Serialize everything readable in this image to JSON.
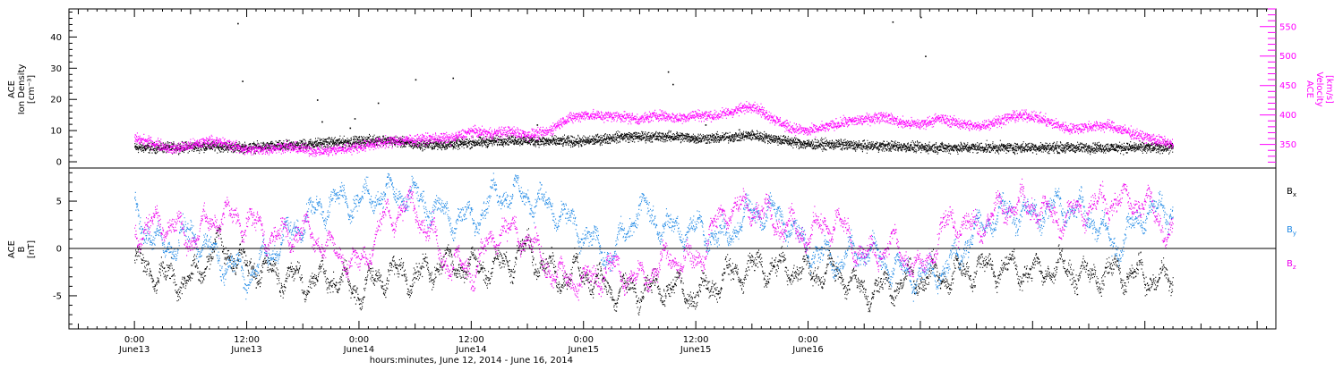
{
  "chart_data": [
    {
      "type": "scatter",
      "panel": "top",
      "y_left_label_lines": [
        "ACE",
        "Ion Density",
        "[cm⁻³]"
      ],
      "y_right_label_lines": [
        "ACE",
        "Velocity",
        "[km/s]"
      ],
      "y_left_range": [
        -2,
        49
      ],
      "y_right_range": [
        310,
        580
      ],
      "y_left_ticks": [
        "0",
        "10",
        "20",
        "30",
        "40"
      ],
      "y_right_ticks": [
        "350",
        "400",
        "450",
        "500",
        "550"
      ],
      "colors": {
        "density": "#000000",
        "velocity": "#ff00ff"
      },
      "series": [
        {
          "name": "Ion Density",
          "axis": "left",
          "color": "#000000",
          "x_hours": [
            0,
            4,
            8,
            12,
            16,
            20,
            24,
            26,
            28,
            30,
            33,
            36,
            40,
            44,
            48,
            52,
            56,
            58,
            60,
            62,
            64,
            66,
            68,
            70,
            72,
            75,
            78,
            81,
            84,
            88,
            92,
            96,
            100,
            104,
            108,
            111
          ],
          "values": [
            4.5,
            4.5,
            5,
            4.5,
            5,
            6,
            6.5,
            7,
            6.5,
            5.5,
            5.5,
            6,
            7,
            6.5,
            6.5,
            8,
            8,
            8,
            7.5,
            7.5,
            8,
            8.5,
            7.5,
            6.5,
            5.5,
            5.5,
            5,
            5,
            4.5,
            4.5,
            4.5,
            4.5,
            4.5,
            4.5,
            4.5,
            4.5
          ],
          "outliers": [
            [
              11,
              44.5
            ],
            [
              11.5,
              26
            ],
            [
              19.5,
              20
            ],
            [
              20,
              13
            ],
            [
              23,
              11
            ],
            [
              23.5,
              14
            ],
            [
              26,
              19
            ],
            [
              30,
              26.5
            ],
            [
              34,
              27
            ],
            [
              43,
              12
            ],
            [
              57,
              29
            ],
            [
              57.5,
              25
            ],
            [
              61,
              12
            ],
            [
              81,
              45
            ],
            [
              84,
              46.5
            ],
            [
              84.5,
              34
            ]
          ]
        },
        {
          "name": "Velocity",
          "axis": "right",
          "color": "#ff00ff",
          "x_hours": [
            0,
            2,
            4,
            6,
            8,
            10,
            12,
            14,
            16,
            18,
            20,
            22,
            24,
            26,
            28,
            30,
            32,
            34,
            36,
            38,
            40,
            42,
            44,
            46,
            48,
            50,
            52,
            54,
            56,
            58,
            60,
            62,
            64,
            66,
            68,
            70,
            72,
            74,
            76,
            78,
            80,
            82,
            84,
            86,
            88,
            90,
            92,
            94,
            96,
            98,
            100,
            102,
            104,
            106,
            108,
            110,
            111
          ],
          "values": [
            360,
            352,
            342,
            348,
            356,
            350,
            340,
            342,
            346,
            342,
            338,
            342,
            346,
            352,
            356,
            358,
            360,
            360,
            372,
            368,
            372,
            366,
            370,
            392,
            400,
            398,
            398,
            392,
            400,
            394,
            400,
            398,
            406,
            416,
            396,
            378,
            372,
            380,
            388,
            392,
            398,
            386,
            384,
            394,
            386,
            380,
            388,
            398,
            398,
            386,
            376,
            380,
            382,
            372,
            362,
            354,
            350
          ]
        }
      ]
    },
    {
      "type": "scatter",
      "panel": "bottom",
      "y_label_lines": [
        "ACE",
        "B",
        "[nT]"
      ],
      "y_range": [
        -8.5,
        8.5
      ],
      "y_ticks": [
        "-5",
        "0",
        "5"
      ],
      "zero_line": true,
      "legend_position": "right",
      "legend": [
        {
          "label": "B",
          "sub": "x",
          "color": "#000000"
        },
        {
          "label": "B",
          "sub": "y",
          "color": "#1e88e5"
        },
        {
          "label": "B",
          "sub": "z",
          "color": "#ee00ee"
        }
      ],
      "series": [
        {
          "name": "Bx",
          "color": "#000000",
          "x_hours": [
            0,
            3,
            6,
            9,
            12,
            15,
            18,
            21,
            24,
            27,
            30,
            33,
            36,
            39,
            42,
            45,
            48,
            51,
            54,
            57,
            60,
            63,
            66,
            69,
            72,
            75,
            78,
            81,
            84,
            87,
            90,
            93,
            96,
            99,
            102,
            105,
            108,
            111
          ],
          "values": [
            -1.5,
            -3,
            -3.5,
            0.5,
            -2,
            -2.5,
            -3.5,
            -3,
            -4.5,
            -2.5,
            -3,
            -1.5,
            -2,
            -2,
            0,
            -3,
            -2.5,
            -4.5,
            -4.5,
            -4,
            -5,
            -3,
            -2,
            -2,
            -2.5,
            -2.5,
            -4.5,
            -4,
            -3,
            -3,
            -2,
            -2,
            -2.5,
            -2,
            -3,
            -2.5,
            -3,
            -3.5
          ]
        },
        {
          "name": "By",
          "color": "#1e88e5",
          "x_hours": [
            0,
            3,
            6,
            9,
            12,
            15,
            18,
            21,
            24,
            27,
            30,
            33,
            36,
            39,
            42,
            45,
            48,
            51,
            54,
            57,
            60,
            63,
            66,
            69,
            72,
            75,
            78,
            81,
            84,
            87,
            90,
            93,
            96,
            99,
            102,
            105,
            108,
            111
          ],
          "values": [
            3.5,
            0,
            1.5,
            -1,
            -3,
            0,
            3,
            5,
            5,
            6,
            5.5,
            3.5,
            3,
            6,
            5.5,
            4,
            1.5,
            -1,
            4.5,
            2,
            2,
            1,
            4,
            3.5,
            0,
            -1.5,
            0,
            -2,
            -3,
            -2,
            2,
            4,
            3.5,
            4.5,
            3.5,
            0,
            4,
            4
          ]
        },
        {
          "name": "Bz",
          "color": "#ee00ee",
          "x_hours": [
            0,
            3,
            6,
            9,
            12,
            15,
            18,
            21,
            24,
            27,
            30,
            33,
            36,
            39,
            42,
            45,
            48,
            51,
            54,
            57,
            60,
            63,
            66,
            69,
            72,
            75,
            78,
            81,
            84,
            87,
            90,
            93,
            96,
            99,
            102,
            105,
            108,
            111
          ],
          "values": [
            1.5,
            3,
            1,
            3.5,
            3,
            1,
            2,
            0,
            -2,
            3.5,
            4.5,
            -1,
            -2.5,
            2,
            1,
            -3,
            -3.5,
            -2,
            -3.5,
            -1,
            -1.5,
            4,
            4.5,
            2.5,
            1.5,
            3,
            -1,
            0.5,
            -2.5,
            3,
            2,
            4.5,
            4.5,
            3,
            4.5,
            5,
            5,
            1
          ]
        }
      ]
    },
    {
      "type": "time_axis",
      "x_range_hours": [
        -7,
        122
      ],
      "ticks": [
        {
          "hours": 0,
          "time": "0:00",
          "day": "June13"
        },
        {
          "hours": 12,
          "time": "12:00",
          "day": "June13"
        },
        {
          "hours": 24,
          "time": "0:00",
          "day": "June14"
        },
        {
          "hours": 36,
          "time": "12:00",
          "day": "June14"
        },
        {
          "hours": 48,
          "time": "0:00",
          "day": "June15"
        },
        {
          "hours": 60,
          "time": "12:00",
          "day": "June15"
        },
        {
          "hours": 72,
          "time": "0:00",
          "day": "June16"
        }
      ],
      "xlabel": "hours:minutes, June 12, 2014 - June 16, 2014"
    }
  ]
}
